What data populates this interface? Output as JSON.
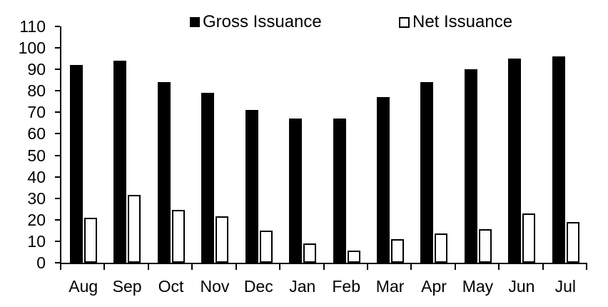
{
  "chart_data": {
    "type": "bar",
    "categories": [
      "Aug",
      "Sep",
      "Oct",
      "Nov",
      "Dec",
      "Jan",
      "Feb",
      "Mar",
      "Apr",
      "May",
      "Jun",
      "Jul"
    ],
    "series": [
      {
        "name": "Gross Issuance",
        "fill": "#000000",
        "outline": "#000000",
        "values": [
          92,
          94,
          84,
          79,
          71,
          67,
          67,
          77,
          84,
          90,
          95,
          96
        ]
      },
      {
        "name": "Net Issuance",
        "fill": "#ffffff",
        "outline": "#000000",
        "values": [
          21,
          31.5,
          24.5,
          21.5,
          15,
          9,
          5.5,
          11,
          13.5,
          15.5,
          23,
          19
        ]
      }
    ],
    "ylim": [
      0,
      110
    ],
    "ytick_step": 10,
    "ytick_labels": [
      "0",
      "10",
      "20",
      "30",
      "40",
      "50",
      "60",
      "70",
      "80",
      "90",
      "100",
      "110"
    ],
    "xlabel": "",
    "ylabel": "",
    "grid": false,
    "legend_position": "top",
    "axis_color": "#000000"
  }
}
